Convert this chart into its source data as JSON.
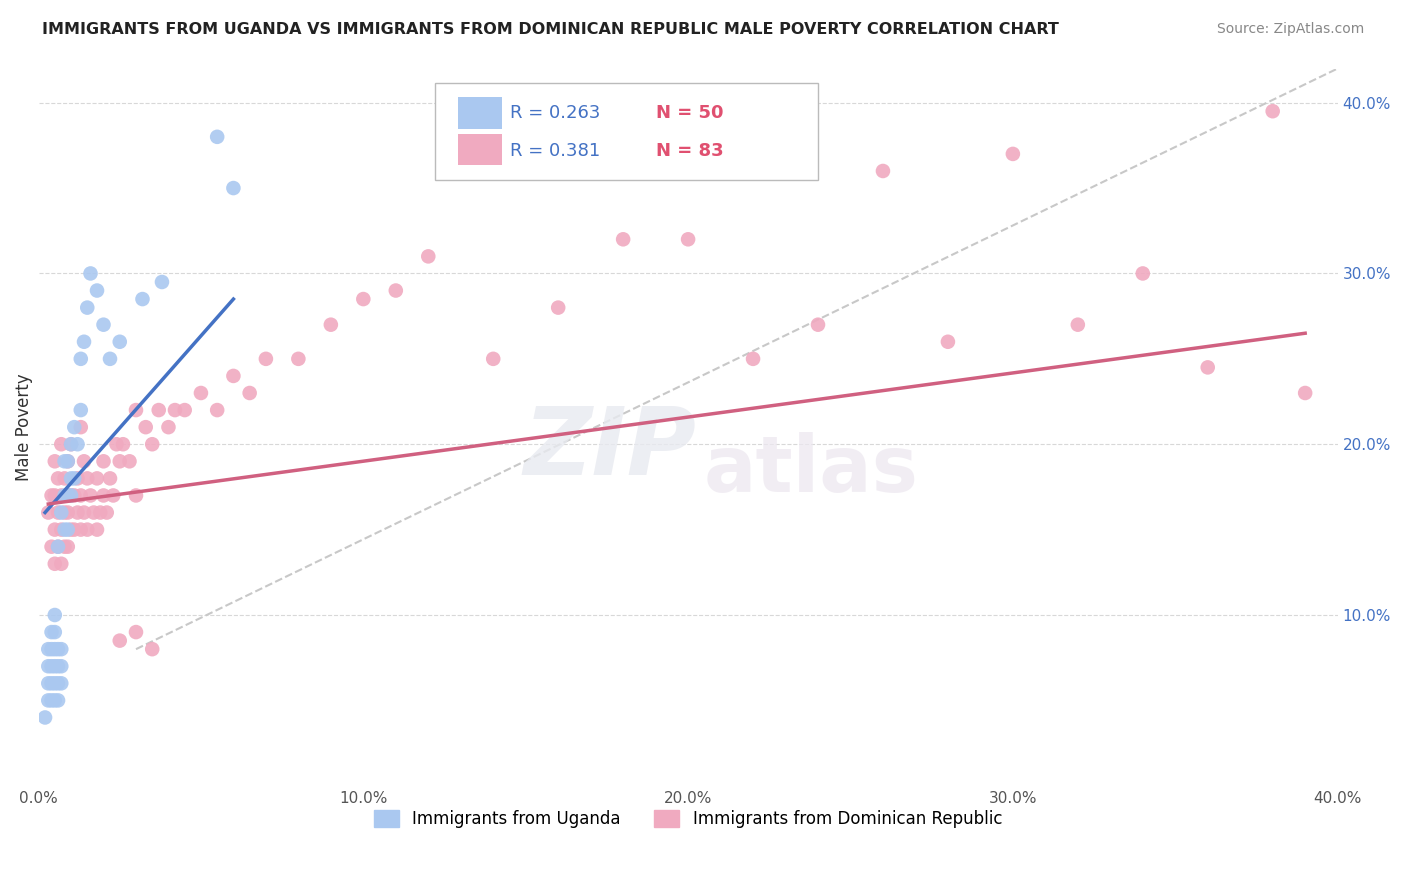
{
  "title": "IMMIGRANTS FROM UGANDA VS IMMIGRANTS FROM DOMINICAN REPUBLIC MALE POVERTY CORRELATION CHART",
  "source": "Source: ZipAtlas.com",
  "ylabel": "Male Poverty",
  "xlim": [
    0.0,
    0.4
  ],
  "ylim": [
    0.0,
    0.42
  ],
  "xticks": [
    0.0,
    0.05,
    0.1,
    0.15,
    0.2,
    0.25,
    0.3,
    0.35,
    0.4
  ],
  "xtick_labels": [
    "0.0%",
    "",
    "10.0%",
    "",
    "20.0%",
    "",
    "30.0%",
    "",
    "40.0%"
  ],
  "yticks": [
    0.1,
    0.2,
    0.3,
    0.4
  ],
  "ytick_labels": [
    "10.0%",
    "20.0%",
    "30.0%",
    "40.0%"
  ],
  "legend_labels": [
    "Immigrants from Uganda",
    "Immigrants from Dominican Republic"
  ],
  "legend_R": [
    0.263,
    0.381
  ],
  "legend_N": [
    50,
    83
  ],
  "blue_color": "#aac8f0",
  "pink_color": "#f0aac0",
  "blue_line_color": "#4472c4",
  "pink_line_color": "#d06080",
  "blue_scatter_x": [
    0.002,
    0.003,
    0.003,
    0.003,
    0.003,
    0.004,
    0.004,
    0.004,
    0.004,
    0.004,
    0.005,
    0.005,
    0.005,
    0.005,
    0.005,
    0.005,
    0.006,
    0.006,
    0.006,
    0.006,
    0.006,
    0.007,
    0.007,
    0.007,
    0.007,
    0.008,
    0.008,
    0.008,
    0.009,
    0.009,
    0.009,
    0.01,
    0.01,
    0.01,
    0.011,
    0.011,
    0.012,
    0.013,
    0.013,
    0.014,
    0.015,
    0.016,
    0.018,
    0.02,
    0.022,
    0.025,
    0.032,
    0.038,
    0.055,
    0.06
  ],
  "blue_scatter_y": [
    0.04,
    0.06,
    0.07,
    0.08,
    0.05,
    0.05,
    0.06,
    0.07,
    0.08,
    0.09,
    0.05,
    0.06,
    0.07,
    0.08,
    0.09,
    0.1,
    0.05,
    0.06,
    0.07,
    0.08,
    0.14,
    0.06,
    0.07,
    0.08,
    0.16,
    0.15,
    0.17,
    0.19,
    0.15,
    0.17,
    0.19,
    0.17,
    0.18,
    0.2,
    0.18,
    0.21,
    0.2,
    0.22,
    0.25,
    0.26,
    0.28,
    0.3,
    0.29,
    0.27,
    0.25,
    0.26,
    0.285,
    0.295,
    0.38,
    0.35
  ],
  "pink_scatter_x": [
    0.003,
    0.004,
    0.004,
    0.005,
    0.005,
    0.005,
    0.005,
    0.006,
    0.006,
    0.006,
    0.007,
    0.007,
    0.007,
    0.007,
    0.008,
    0.008,
    0.008,
    0.009,
    0.009,
    0.009,
    0.01,
    0.01,
    0.01,
    0.011,
    0.011,
    0.012,
    0.012,
    0.013,
    0.013,
    0.013,
    0.014,
    0.014,
    0.015,
    0.015,
    0.016,
    0.017,
    0.018,
    0.018,
    0.019,
    0.02,
    0.02,
    0.021,
    0.022,
    0.023,
    0.024,
    0.025,
    0.026,
    0.028,
    0.03,
    0.03,
    0.033,
    0.035,
    0.037,
    0.04,
    0.042,
    0.045,
    0.05,
    0.055,
    0.06,
    0.065,
    0.07,
    0.08,
    0.09,
    0.1,
    0.11,
    0.12,
    0.14,
    0.16,
    0.18,
    0.2,
    0.22,
    0.24,
    0.26,
    0.28,
    0.3,
    0.32,
    0.34,
    0.36,
    0.38,
    0.39,
    0.025,
    0.03,
    0.035
  ],
  "pink_scatter_y": [
    0.16,
    0.14,
    0.17,
    0.13,
    0.15,
    0.17,
    0.19,
    0.14,
    0.16,
    0.18,
    0.13,
    0.15,
    0.17,
    0.2,
    0.14,
    0.16,
    0.18,
    0.14,
    0.16,
    0.19,
    0.15,
    0.17,
    0.2,
    0.15,
    0.17,
    0.16,
    0.18,
    0.15,
    0.17,
    0.21,
    0.16,
    0.19,
    0.15,
    0.18,
    0.17,
    0.16,
    0.15,
    0.18,
    0.16,
    0.17,
    0.19,
    0.16,
    0.18,
    0.17,
    0.2,
    0.19,
    0.2,
    0.19,
    0.17,
    0.22,
    0.21,
    0.2,
    0.22,
    0.21,
    0.22,
    0.22,
    0.23,
    0.22,
    0.24,
    0.23,
    0.25,
    0.25,
    0.27,
    0.285,
    0.29,
    0.31,
    0.25,
    0.28,
    0.32,
    0.32,
    0.25,
    0.27,
    0.36,
    0.26,
    0.37,
    0.27,
    0.3,
    0.245,
    0.395,
    0.23,
    0.085,
    0.09,
    0.08
  ]
}
